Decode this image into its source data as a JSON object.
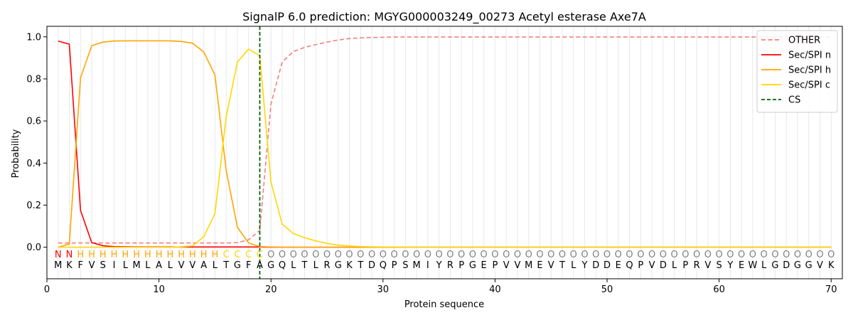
{
  "chart_data": {
    "type": "line",
    "title": "SignalP 6.0 prediction: MGYG000003249_00273 Acetyl esterase Axe7A",
    "xlabel": "Protein sequence",
    "ylabel": "Probability",
    "xlim": [
      0,
      71
    ],
    "ylim": [
      -0.15,
      1.05
    ],
    "x_ticks": [
      0,
      10,
      20,
      30,
      40,
      50,
      60,
      70
    ],
    "y_ticks": [
      0.0,
      0.2,
      0.4,
      0.6,
      0.8,
      1.0
    ],
    "x_tick_labels": [
      "0",
      "10",
      "20",
      "30",
      "40",
      "50",
      "60",
      "70"
    ],
    "y_tick_labels": [
      "0.0",
      "0.2",
      "0.4",
      "0.6",
      "0.8",
      "1.0"
    ],
    "grid": "vertical lines at each residue",
    "legend_position": "top-right",
    "cleavage_site": 19,
    "sequence": [
      "M",
      "K",
      "F",
      "V",
      "S",
      "I",
      "L",
      "M",
      "L",
      "A",
      "L",
      "V",
      "V",
      "A",
      "L",
      "T",
      "G",
      "F",
      "A",
      "G",
      "Q",
      "L",
      "T",
      "L",
      "R",
      "G",
      "K",
      "T",
      "D",
      "Q",
      "P",
      "S",
      "M",
      "I",
      "Y",
      "R",
      "P",
      "G",
      "E",
      "P",
      "V",
      "V",
      "M",
      "E",
      "V",
      "T",
      "L",
      "Y",
      "D",
      "D",
      "E",
      "Q",
      "P",
      "V",
      "D",
      "L",
      "P",
      "R",
      "V",
      "S",
      "Y",
      "E",
      "W",
      "L",
      "G",
      "D",
      "G",
      "G",
      "V",
      "K"
    ],
    "labels": [
      "N",
      "N",
      "H",
      "H",
      "H",
      "H",
      "H",
      "H",
      "H",
      "H",
      "H",
      "H",
      "H",
      "H",
      "H",
      "C",
      "C",
      "C",
      "C",
      "O",
      "O",
      "O",
      "O",
      "O",
      "O",
      "O",
      "O",
      "O",
      "O",
      "O",
      "O",
      "O",
      "O",
      "O",
      "O",
      "O",
      "O",
      "O",
      "O",
      "O",
      "O",
      "O",
      "O",
      "O",
      "O",
      "O",
      "O",
      "O",
      "O",
      "O",
      "O",
      "O",
      "O",
      "O",
      "O",
      "O",
      "O",
      "O",
      "O",
      "O",
      "O",
      "O",
      "O",
      "O",
      "O",
      "O",
      "O",
      "O",
      "O",
      "O"
    ],
    "label_colors": {
      "N": "#ff0000",
      "H": "#ffa500",
      "C": "#ffd700",
      "O": "#808080"
    },
    "series": [
      {
        "name": "OTHER",
        "color": "#f08080",
        "style": "dashed",
        "values": [
          0.02,
          0.02,
          0.02,
          0.02,
          0.02,
          0.02,
          0.02,
          0.02,
          0.02,
          0.02,
          0.02,
          0.02,
          0.02,
          0.02,
          0.02,
          0.02,
          0.022,
          0.035,
          0.08,
          0.68,
          0.88,
          0.93,
          0.95,
          0.963,
          0.975,
          0.985,
          0.992,
          0.995,
          0.997,
          0.998,
          0.999,
          0.999,
          0.999,
          0.999,
          0.999,
          0.999,
          0.999,
          0.999,
          0.999,
          0.999,
          0.999,
          0.999,
          0.999,
          0.999,
          0.999,
          0.999,
          0.999,
          0.999,
          0.999,
          0.999,
          0.999,
          0.999,
          0.999,
          0.999,
          0.999,
          0.999,
          0.999,
          0.999,
          0.999,
          0.999,
          0.999,
          0.999,
          0.999,
          0.999,
          0.999,
          0.999,
          0.999,
          0.999,
          0.999,
          0.999
        ]
      },
      {
        "name": "Sec/SPI n",
        "color": "#ff0000",
        "style": "solid",
        "values": [
          0.98,
          0.965,
          0.175,
          0.022,
          0.007,
          0.003,
          0.002,
          0.001,
          0.001,
          0.001,
          0.001,
          0.001,
          0.001,
          0.001,
          0.001,
          0.001,
          0.001,
          0.001,
          0.001,
          0.0,
          0.0,
          0.0,
          0.0,
          0.0,
          0.0,
          0.0,
          0.0,
          0.0,
          0.0,
          0.0,
          0.0,
          0.0,
          0.0,
          0.0,
          0.0,
          0.0,
          0.0,
          0.0,
          0.0,
          0.0,
          0.0,
          0.0,
          0.0,
          0.0,
          0.0,
          0.0,
          0.0,
          0.0,
          0.0,
          0.0,
          0.0,
          0.0,
          0.0,
          0.0,
          0.0,
          0.0,
          0.0,
          0.0,
          0.0,
          0.0,
          0.0,
          0.0,
          0.0,
          0.0,
          0.0,
          0.0,
          0.0,
          0.0,
          0.0,
          0.0
        ]
      },
      {
        "name": "Sec/SPI h",
        "color": "#ffa500",
        "style": "solid",
        "values": [
          0.0,
          0.015,
          0.805,
          0.958,
          0.975,
          0.98,
          0.981,
          0.981,
          0.981,
          0.981,
          0.981,
          0.978,
          0.97,
          0.928,
          0.818,
          0.365,
          0.095,
          0.02,
          0.003,
          0.001,
          0.0,
          0.0,
          0.0,
          0.0,
          0.0,
          0.0,
          0.0,
          0.0,
          0.0,
          0.0,
          0.0,
          0.0,
          0.0,
          0.0,
          0.0,
          0.0,
          0.0,
          0.0,
          0.0,
          0.0,
          0.0,
          0.0,
          0.0,
          0.0,
          0.0,
          0.0,
          0.0,
          0.0,
          0.0,
          0.0,
          0.0,
          0.0,
          0.0,
          0.0,
          0.0,
          0.0,
          0.0,
          0.0,
          0.0,
          0.0,
          0.0,
          0.0,
          0.0,
          0.0,
          0.0,
          0.0,
          0.0,
          0.0,
          0.0,
          0.0
        ]
      },
      {
        "name": "Sec/SPI c",
        "color": "#ffd700",
        "style": "solid",
        "values": [
          0.0,
          0.0,
          0.0,
          0.0,
          0.0,
          0.0,
          0.0,
          0.0,
          0.0,
          0.0,
          0.0,
          0.002,
          0.006,
          0.05,
          0.16,
          0.62,
          0.88,
          0.942,
          0.91,
          0.31,
          0.11,
          0.065,
          0.045,
          0.03,
          0.018,
          0.01,
          0.006,
          0.003,
          0.002,
          0.001,
          0.001,
          0.0,
          0.0,
          0.0,
          0.0,
          0.0,
          0.0,
          0.0,
          0.0,
          0.0,
          0.0,
          0.0,
          0.0,
          0.0,
          0.0,
          0.0,
          0.0,
          0.0,
          0.0,
          0.0,
          0.0,
          0.0,
          0.0,
          0.0,
          0.0,
          0.0,
          0.0,
          0.0,
          0.0,
          0.0,
          0.0,
          0.0,
          0.0,
          0.0,
          0.0,
          0.0,
          0.0,
          0.0,
          0.0,
          0.0
        ]
      },
      {
        "name": "CS",
        "color": "#006400",
        "style": "dashed",
        "x": 19
      }
    ]
  }
}
